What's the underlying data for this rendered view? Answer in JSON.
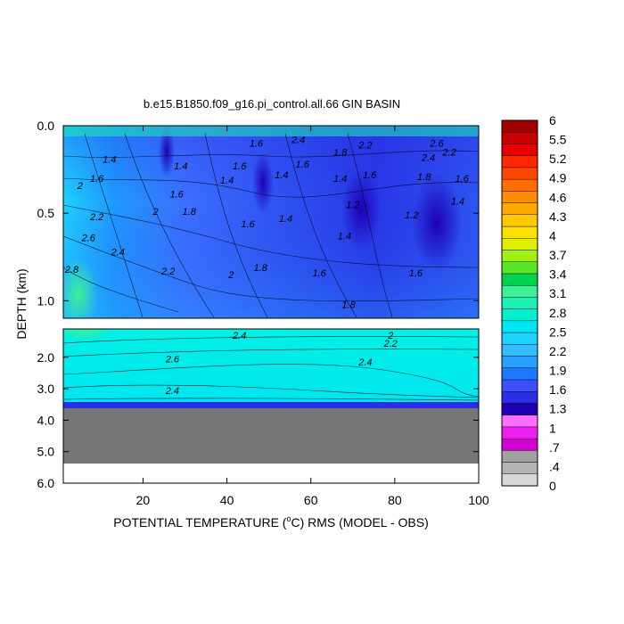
{
  "chart_data": {
    "type": "heatmap",
    "title": "b.e15.B1850.f09_g16.pi_control.all.66 GIN BASIN",
    "xlabel_prefix": "POTENTIAL TEMPERATURE (",
    "xlabel_unit_sup": "o",
    "xlabel_suffix": "C) RMS (MODEL - OBS)",
    "ylabel": "DEPTH (km)",
    "xlim": [
      1,
      100
    ],
    "x_ticks": [
      "20",
      "40",
      "60",
      "80",
      "100"
    ],
    "x_tick_values": [
      20,
      40,
      60,
      80,
      100
    ],
    "upper_panel": {
      "ylim": [
        0.0,
        1.1
      ],
      "y_ticks": [
        "0.0",
        "0.5",
        "1.0"
      ],
      "y_tick_values": [
        0.0,
        0.5,
        1.0
      ]
    },
    "lower_panel": {
      "ylim": [
        1.1,
        6.0
      ],
      "y_ticks": [
        "2.0",
        "3.0",
        "4.0",
        "5.0",
        "6.0"
      ],
      "y_tick_values": [
        2.0,
        3.0,
        4.0,
        5.0,
        6.0
      ],
      "no_data_below_depth": 3.6
    },
    "colorbar": {
      "labels": [
        "6",
        "5.5",
        "5.2",
        "4.9",
        "4.6",
        "4.3",
        "4",
        "3.7",
        "3.4",
        "3.1",
        "2.8",
        "2.5",
        "2.2",
        "1.9",
        "1.6",
        "1.3",
        "1",
        ".7",
        ".4",
        "0"
      ],
      "colors": [
        "#d7d7d7",
        "#b4b4b4",
        "#a0a0a0",
        "#d200d2",
        "#f01ef0",
        "#ff6eff",
        "#1e00b4",
        "#2d2de6",
        "#3c50ff",
        "#1e78ff",
        "#28a0ff",
        "#32beff",
        "#1ed2ff",
        "#00e6f0",
        "#00f0d2",
        "#1ef0b4",
        "#3cf096",
        "#00d250",
        "#5ae628",
        "#a0f014",
        "#dcf000",
        "#ffe100",
        "#ffc800",
        "#ffaa00",
        "#ff8c00",
        "#ff6e00",
        "#ff4600",
        "#ff2800",
        "#e60000",
        "#c80000",
        "#a00000"
      ]
    },
    "contour_labels": [
      {
        "text": "1.4",
        "x": 12,
        "y": 0.19
      },
      {
        "text": "1.6",
        "x": 9,
        "y": 0.3
      },
      {
        "text": "2",
        "x": 5,
        "y": 0.34
      },
      {
        "text": "1.4",
        "x": 29,
        "y": 0.23
      },
      {
        "text": "1.6",
        "x": 28,
        "y": 0.39
      },
      {
        "text": "2",
        "x": 23,
        "y": 0.49
      },
      {
        "text": "1.8",
        "x": 31,
        "y": 0.49
      },
      {
        "text": "1.4",
        "x": 40,
        "y": 0.31
      },
      {
        "text": "1.6",
        "x": 43,
        "y": 0.23
      },
      {
        "text": "1.6",
        "x": 47,
        "y": 0.1
      },
      {
        "text": "2.4",
        "x": 57,
        "y": 0.08
      },
      {
        "text": "1.6",
        "x": 58,
        "y": 0.22
      },
      {
        "text": "1.4",
        "x": 53,
        "y": 0.28
      },
      {
        "text": "1.4",
        "x": 54,
        "y": 0.53
      },
      {
        "text": "1.6",
        "x": 45,
        "y": 0.56
      },
      {
        "text": "1.4",
        "x": 67,
        "y": 0.3
      },
      {
        "text": "1.8",
        "x": 67,
        "y": 0.15
      },
      {
        "text": "2.2",
        "x": 73,
        "y": 0.11
      },
      {
        "text": "1.6",
        "x": 74,
        "y": 0.28
      },
      {
        "text": "1.2",
        "x": 70,
        "y": 0.45
      },
      {
        "text": "1.4",
        "x": 68,
        "y": 0.63
      },
      {
        "text": "1.2",
        "x": 84,
        "y": 0.51
      },
      {
        "text": "1.6",
        "x": 85,
        "y": 0.84
      },
      {
        "text": "1.8",
        "x": 87,
        "y": 0.29
      },
      {
        "text": "2.4",
        "x": 88,
        "y": 0.18
      },
      {
        "text": "2.6",
        "x": 90,
        "y": 0.1
      },
      {
        "text": "2.2",
        "x": 93,
        "y": 0.15
      },
      {
        "text": "1.6",
        "x": 96,
        "y": 0.3
      },
      {
        "text": "1.4",
        "x": 95,
        "y": 0.43
      },
      {
        "text": "2.2",
        "x": 9,
        "y": 0.52
      },
      {
        "text": "2.6",
        "x": 7,
        "y": 0.64
      },
      {
        "text": "2.4",
        "x": 14,
        "y": 0.72
      },
      {
        "text": "2.8",
        "x": 3,
        "y": 0.82
      },
      {
        "text": "2.2",
        "x": 26,
        "y": 0.83
      },
      {
        "text": "2",
        "x": 41,
        "y": 0.85
      },
      {
        "text": "1.8",
        "x": 48,
        "y": 0.81
      },
      {
        "text": "1.6",
        "x": 62,
        "y": 0.84
      },
      {
        "text": "1.8",
        "x": 69,
        "y": 1.02
      },
      {
        "text": "2.4",
        "x": 43,
        "y": 1.3
      },
      {
        "text": "2",
        "x": 79,
        "y": 1.3
      },
      {
        "text": "2.2",
        "x": 79,
        "y": 1.55
      },
      {
        "text": "2.6",
        "x": 27,
        "y": 2.05
      },
      {
        "text": "2.4",
        "x": 73,
        "y": 2.15
      },
      {
        "text": "2.4",
        "x": 27,
        "y": 3.05
      }
    ],
    "grid": false,
    "legend": "colorbar-right"
  }
}
